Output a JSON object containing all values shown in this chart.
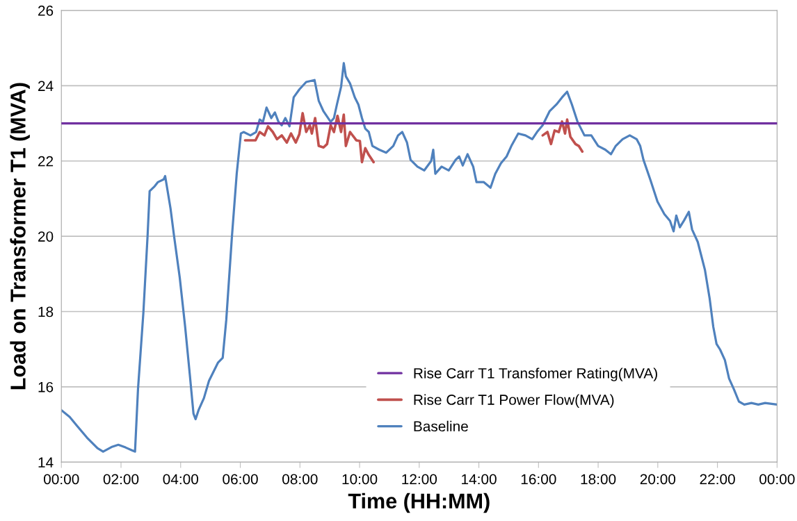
{
  "chart_data": {
    "type": "line",
    "xlabel": "Time (HH:MM)",
    "ylabel": "Load on Transformer T1 (MVA)",
    "xlim": [
      0,
      24
    ],
    "ylim": [
      14,
      26
    ],
    "xticks": [
      {
        "value": 0,
        "label": "00:00"
      },
      {
        "value": 2,
        "label": "02:00"
      },
      {
        "value": 4,
        "label": "04:00"
      },
      {
        "value": 6,
        "label": "06:00"
      },
      {
        "value": 8,
        "label": "08:00"
      },
      {
        "value": 10,
        "label": "10:00"
      },
      {
        "value": 12,
        "label": "12:00"
      },
      {
        "value": 14,
        "label": "14:00"
      },
      {
        "value": 16,
        "label": "16:00"
      },
      {
        "value": 18,
        "label": "18:00"
      },
      {
        "value": 20,
        "label": "20:00"
      },
      {
        "value": 22,
        "label": "22:00"
      },
      {
        "value": 24,
        "label": "00:00"
      }
    ],
    "yticks": [
      14,
      16,
      18,
      20,
      22,
      24,
      26
    ],
    "grid": "y",
    "legend": "bottom right",
    "marker": "none",
    "line_style": "solid",
    "series": [
      {
        "name": "Rise Carr T1 Transfomer Rating(MVA)",
        "color": "#7030a0",
        "x": [
          0,
          24
        ],
        "values": [
          23,
          23
        ]
      },
      {
        "name": "Rise Carr T1 Power Flow(MVA)",
        "color": "#c0504d",
        "x": [
          6.16,
          6.51,
          6.65,
          6.81,
          6.93,
          7.09,
          7.23,
          7.39,
          7.56,
          7.7,
          7.86,
          7.98,
          8.09,
          8.21,
          8.33,
          8.4,
          8.51,
          8.63,
          8.79,
          8.91,
          9.03,
          9.14,
          9.26,
          9.38,
          9.47,
          9.54,
          9.68,
          9.89,
          10.01,
          10.08,
          10.19,
          10.31,
          10.47,
          null,
          16.14,
          16.3,
          16.42,
          16.54,
          16.68,
          16.79,
          16.89,
          16.96,
          17.07,
          17.24,
          17.35,
          17.47
        ],
        "values": [
          22.55,
          22.55,
          22.77,
          22.68,
          22.92,
          22.77,
          22.58,
          22.68,
          22.49,
          22.73,
          22.49,
          22.71,
          23.27,
          22.77,
          22.95,
          22.73,
          23.14,
          22.4,
          22.36,
          22.45,
          22.95,
          22.77,
          23.2,
          22.77,
          23.23,
          22.4,
          22.77,
          22.55,
          22.53,
          21.97,
          22.34,
          22.16,
          21.97,
          null,
          22.68,
          22.77,
          22.45,
          22.81,
          22.77,
          23.05,
          22.73,
          23.1,
          22.64,
          22.45,
          22.4,
          22.25
        ]
      },
      {
        "name": "Baseline",
        "color": "#4f81bd",
        "x": [
          0,
          0.28,
          0.51,
          0.86,
          1.21,
          1.4,
          1.68,
          1.91,
          2.15,
          2.38,
          2.47,
          2.57,
          2.75,
          2.89,
          2.96,
          3.13,
          3.24,
          3.43,
          3.48,
          3.66,
          3.78,
          3.97,
          4.15,
          4.31,
          4.43,
          4.5,
          4.6,
          4.78,
          4.95,
          5.1,
          5.25,
          5.41,
          5.53,
          5.72,
          5.88,
          6.02,
          6.11,
          6.34,
          6.53,
          6.65,
          6.76,
          6.88,
          7.04,
          7.16,
          7.28,
          7.39,
          7.51,
          7.65,
          7.79,
          7.98,
          8.21,
          8.49,
          8.63,
          8.79,
          9.03,
          9.14,
          9.24,
          9.38,
          9.47,
          9.54,
          9.68,
          9.84,
          9.96,
          10.08,
          10.19,
          10.31,
          10.43,
          10.66,
          10.89,
          11.13,
          11.29,
          11.43,
          11.59,
          11.71,
          11.94,
          12.17,
          12.4,
          12.47,
          12.54,
          12.75,
          12.99,
          13.22,
          13.34,
          13.46,
          13.62,
          13.81,
          13.92,
          14.16,
          14.39,
          14.55,
          14.74,
          14.93,
          15.09,
          15.32,
          15.56,
          15.79,
          15.95,
          16.14,
          16.37,
          16.6,
          16.79,
          16.96,
          17.12,
          17.31,
          17.54,
          17.77,
          18.0,
          18.24,
          18.43,
          18.59,
          18.82,
          19.06,
          19.29,
          19.41,
          19.52,
          19.76,
          19.99,
          20.22,
          20.41,
          20.53,
          20.62,
          20.74,
          20.88,
          21.04,
          21.15,
          21.34,
          21.58,
          21.74,
          21.86,
          21.97,
          22.09,
          22.25,
          22.39,
          22.55,
          22.72,
          22.9,
          23.14,
          23.37,
          23.6,
          24.0
        ],
        "values": [
          15.38,
          15.2,
          14.98,
          14.65,
          14.37,
          14.28,
          14.4,
          14.46,
          14.39,
          14.31,
          14.28,
          15.94,
          17.97,
          20.0,
          21.2,
          21.33,
          21.44,
          21.51,
          21.6,
          20.74,
          20.0,
          18.9,
          17.6,
          16.3,
          15.29,
          15.14,
          15.38,
          15.7,
          16.16,
          16.4,
          16.64,
          16.77,
          17.78,
          20.0,
          21.66,
          22.73,
          22.77,
          22.68,
          22.77,
          23.1,
          23.04,
          23.42,
          23.14,
          23.29,
          23.04,
          22.95,
          23.14,
          22.92,
          23.69,
          23.9,
          24.1,
          24.15,
          23.6,
          23.32,
          23.04,
          23.14,
          23.5,
          23.97,
          24.6,
          24.25,
          24.06,
          23.69,
          23.5,
          23.14,
          22.86,
          22.77,
          22.4,
          22.3,
          22.22,
          22.4,
          22.68,
          22.77,
          22.49,
          22.03,
          21.85,
          21.75,
          22.0,
          22.3,
          21.66,
          21.85,
          21.75,
          22.03,
          22.12,
          21.88,
          22.18,
          21.85,
          21.44,
          21.44,
          21.29,
          21.66,
          21.94,
          22.12,
          22.4,
          22.73,
          22.68,
          22.58,
          22.77,
          22.95,
          23.32,
          23.5,
          23.69,
          23.84,
          23.5,
          23.04,
          22.68,
          22.68,
          22.4,
          22.3,
          22.18,
          22.4,
          22.58,
          22.68,
          22.58,
          22.4,
          22.03,
          21.48,
          20.92,
          20.59,
          20.41,
          20.13,
          20.55,
          20.24,
          20.42,
          20.65,
          20.18,
          19.85,
          19.11,
          18.34,
          17.6,
          17.14,
          16.99,
          16.71,
          16.22,
          15.94,
          15.61,
          15.53,
          15.57,
          15.53,
          15.57,
          15.53
        ]
      }
    ]
  }
}
